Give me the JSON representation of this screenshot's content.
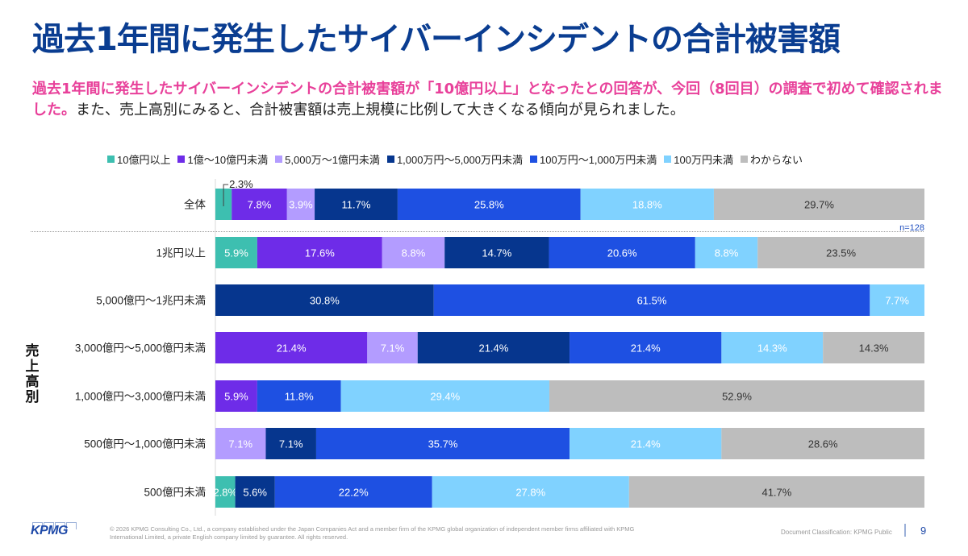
{
  "header": {
    "title": "過去1年間に発生したサイバーインシデントの合計被害額",
    "lead_highlight": "過去1年間に発生したサイバーインシデントの合計被害額が「10億円以上」となったとの回答が、今回（8回目）の調査で初めて確認されました。",
    "lead_normal": "また、売上高別にみると、合計被害額は売上規模に比例して大きくなる傾向が見られました。"
  },
  "chart_data": {
    "type": "bar",
    "orientation": "horizontal",
    "stacked": true,
    "normalized": "100%",
    "title": "",
    "xlabel": "",
    "ylabel": "売上高別",
    "xlim": [
      0,
      100
    ],
    "legend_position": "top",
    "sample_size": "n=128",
    "callout": {
      "category": "全体",
      "series": "10億円以上",
      "label": "2.3%"
    },
    "categories": [
      "全体",
      "1兆円以上",
      "5,000億円～1兆円未満",
      "3,000億円～5,000億円未満",
      "1,000億円～3,000億円未満",
      "500億円～1,000億円未満",
      "500億円未満"
    ],
    "series": [
      {
        "name": "10億円以上",
        "color": "#3dbfb0",
        "label_color": "#ffffff",
        "values": [
          2.3,
          5.9,
          0,
          0,
          0,
          0,
          2.8
        ]
      },
      {
        "name": "1億～10億円未満",
        "color": "#6e2ce8",
        "label_color": "#ffffff",
        "values": [
          7.8,
          17.6,
          0,
          21.4,
          5.9,
          0,
          0
        ]
      },
      {
        "name": "5,000万～1億円未満",
        "color": "#b39cff",
        "label_color": "#ffffff",
        "values": [
          3.9,
          8.8,
          0,
          7.1,
          0,
          7.1,
          0
        ]
      },
      {
        "name": "1,000万円～5,000万円未満",
        "color": "#06368e",
        "label_color": "#ffffff",
        "values": [
          11.7,
          14.7,
          30.8,
          21.4,
          0,
          7.1,
          5.6
        ]
      },
      {
        "name": "100万円～1,000万円未満",
        "color": "#1e50e2",
        "label_color": "#ffffff",
        "values": [
          25.8,
          20.6,
          61.5,
          21.4,
          11.8,
          35.7,
          22.2
        ]
      },
      {
        "name": "100万円未満",
        "color": "#80d2ff",
        "label_color": "#ffffff",
        "values": [
          18.8,
          8.8,
          7.7,
          14.3,
          29.4,
          21.4,
          27.8
        ]
      },
      {
        "name": "わからない",
        "color": "#bdbdbd",
        "label_color": "#333333",
        "values": [
          29.7,
          23.5,
          0,
          14.3,
          52.9,
          28.6,
          41.7
        ]
      }
    ]
  },
  "side_label": "売上高別",
  "footer": {
    "logo": "KPMG",
    "copyright_line1": "© 2026 KPMG Consulting Co., Ltd., a company established under the Japan Companies Act and a member firm of the KPMG global organization of independent member firms affiliated with KPMG",
    "copyright_line2": "International Limited, a private English company limited by guarantee. All rights reserved.",
    "classification": "Document Classification: KPMG Public",
    "page_number": "9"
  }
}
